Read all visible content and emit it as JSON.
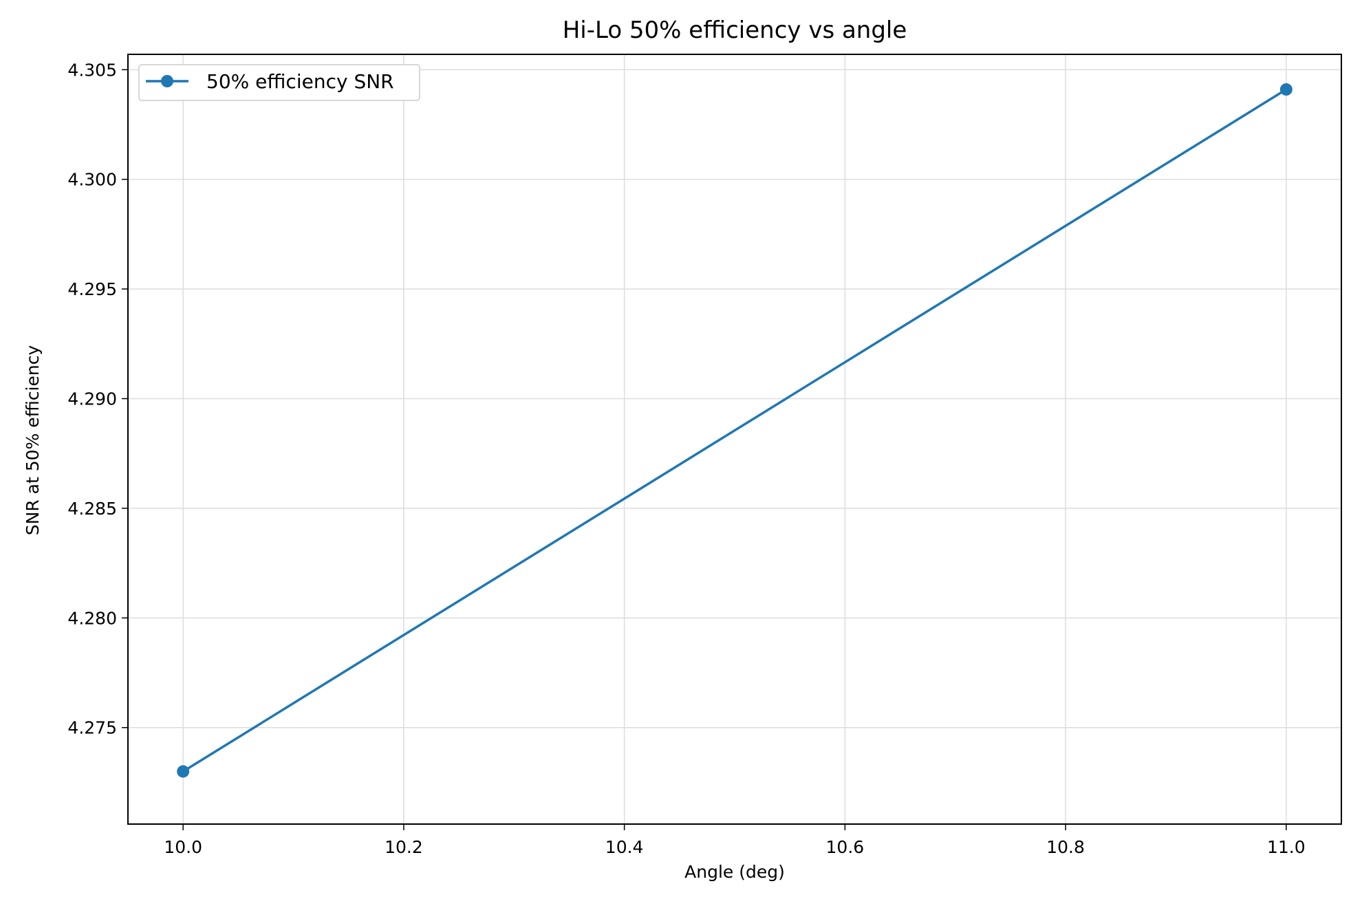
{
  "chart_data": {
    "type": "line",
    "title": "Hi-Lo 50% efficiency vs angle",
    "xlabel": "Angle (deg)",
    "ylabel": "SNR at 50% efficiency",
    "xlim": [
      9.95,
      11.05
    ],
    "ylim": [
      4.2706,
      4.3057
    ],
    "xticks": [
      10.0,
      10.2,
      10.4,
      10.6,
      10.8,
      11.0
    ],
    "xtick_labels": [
      "10.0",
      "10.2",
      "10.4",
      "10.6",
      "10.8",
      "11.0"
    ],
    "yticks": [
      4.275,
      4.28,
      4.285,
      4.29,
      4.295,
      4.3,
      4.305
    ],
    "ytick_labels": [
      "4.275",
      "4.280",
      "4.285",
      "4.290",
      "4.295",
      "4.300",
      "4.305"
    ],
    "grid": true,
    "legend_position": "top-left",
    "series": [
      {
        "name": "50% efficiency SNR",
        "color": "#1f77b4",
        "marker": "circle",
        "x": [
          10.0,
          11.0
        ],
        "y": [
          4.273,
          4.3041
        ]
      }
    ]
  }
}
